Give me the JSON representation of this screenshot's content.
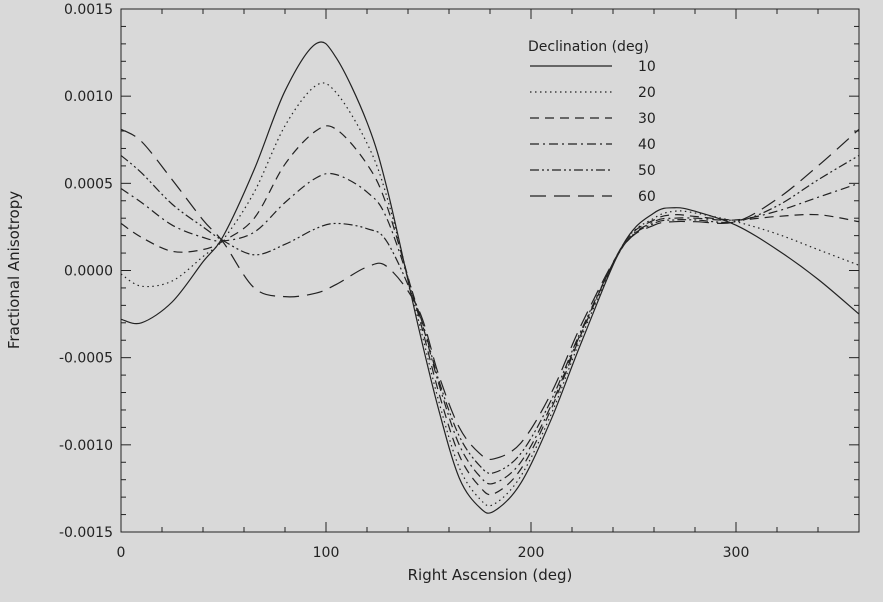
{
  "chart_data": {
    "type": "line",
    "title": "",
    "xlabel": "Right Ascension (deg)",
    "ylabel": "Fractional Anisotropy",
    "xlim": [
      0,
      360
    ],
    "ylim": [
      -0.0015,
      0.0015
    ],
    "x_ticks": [
      0,
      100,
      200,
      300
    ],
    "x_tick_labels": [
      "0",
      "100",
      "200",
      "300"
    ],
    "y_ticks": [
      -0.0015,
      -0.001,
      -0.0005,
      0.0,
      0.0005,
      0.001,
      0.0015
    ],
    "y_tick_labels": [
      "-0.0015",
      "-0.0010",
      "-0.0005",
      "0.0000",
      "0.0005",
      "0.0010",
      "0.0015"
    ],
    "grid": false,
    "legend": {
      "title": "Declination (deg)",
      "position": "top-right"
    },
    "colors": {
      "background": "#d9d9d9",
      "line": "#222222"
    },
    "x": [
      0,
      10,
      25,
      40,
      50,
      65,
      80,
      95,
      105,
      120,
      130,
      145,
      155,
      165,
      175,
      182,
      195,
      210,
      225,
      245,
      260,
      270,
      280,
      300,
      320,
      340,
      360
    ],
    "series": [
      {
        "name": "10",
        "dash": "solid",
        "values": [
          -0.00028,
          -0.0003,
          -0.00018,
          5e-05,
          0.0002,
          0.00058,
          0.00103,
          0.0013,
          0.00122,
          0.00085,
          0.00046,
          -0.00032,
          -0.0008,
          -0.00119,
          -0.00136,
          -0.00138,
          -0.00122,
          -0.00085,
          -0.0004,
          0.00015,
          0.00033,
          0.00036,
          0.00034,
          0.00026,
          0.00012,
          -5e-05,
          -0.00025
        ]
      },
      {
        "name": "20",
        "dash": "dotted",
        "values": [
          -2e-05,
          -9e-05,
          -6e-05,
          8e-05,
          0.00018,
          0.00045,
          0.00083,
          0.00106,
          0.00102,
          0.00073,
          0.00041,
          -0.00028,
          -0.00075,
          -0.00113,
          -0.00131,
          -0.00134,
          -0.00118,
          -0.00082,
          -0.00037,
          0.00015,
          0.0003,
          0.00034,
          0.00033,
          0.00028,
          0.00021,
          0.00012,
          3e-05
        ]
      },
      {
        "name": "30",
        "dash": "dashed",
        "values": [
          0.00027,
          0.00019,
          0.00011,
          0.00012,
          0.00017,
          0.0003,
          0.00061,
          0.0008,
          0.00081,
          0.00061,
          0.00036,
          -0.00025,
          -0.0007,
          -0.00106,
          -0.00124,
          -0.00128,
          -0.00114,
          -0.00079,
          -0.00035,
          0.00015,
          0.00029,
          0.00032,
          0.00031,
          0.00029,
          0.00031,
          0.00032,
          0.00028
        ]
      },
      {
        "name": "40",
        "dash": "dash-dot",
        "values": [
          0.00047,
          0.00039,
          0.00026,
          0.00019,
          0.00017,
          0.00022,
          0.00039,
          0.00053,
          0.00055,
          0.00045,
          0.00029,
          -0.00023,
          -0.00065,
          -0.001,
          -0.00118,
          -0.00122,
          -0.0011,
          -0.00077,
          -0.00034,
          0.00014,
          0.00028,
          0.0003,
          0.0003,
          0.00029,
          0.00034,
          0.00042,
          0.0005
        ]
      },
      {
        "name": "50",
        "dash": "dash-dot-dot",
        "values": [
          0.00066,
          0.00056,
          0.00038,
          0.00025,
          0.00017,
          9e-05,
          0.00015,
          0.00024,
          0.00027,
          0.00024,
          0.00016,
          -0.00023,
          -0.00063,
          -0.00095,
          -0.00112,
          -0.00116,
          -0.00105,
          -0.00074,
          -0.00033,
          0.00014,
          0.00027,
          0.00029,
          0.00029,
          0.00028,
          0.00037,
          0.00052,
          0.00066
        ]
      },
      {
        "name": "60",
        "dash": "long-dash",
        "values": [
          0.00081,
          0.00074,
          0.00052,
          0.00029,
          0.00016,
          -0.0001,
          -0.00015,
          -0.00013,
          -8e-05,
          2e-05,
          2e-05,
          -0.00022,
          -0.0006,
          -0.0009,
          -0.00105,
          -0.00108,
          -0.00099,
          -0.0007,
          -0.0003,
          0.00014,
          0.00026,
          0.00028,
          0.00028,
          0.00028,
          0.00041,
          0.0006,
          0.00081
        ]
      }
    ]
  }
}
